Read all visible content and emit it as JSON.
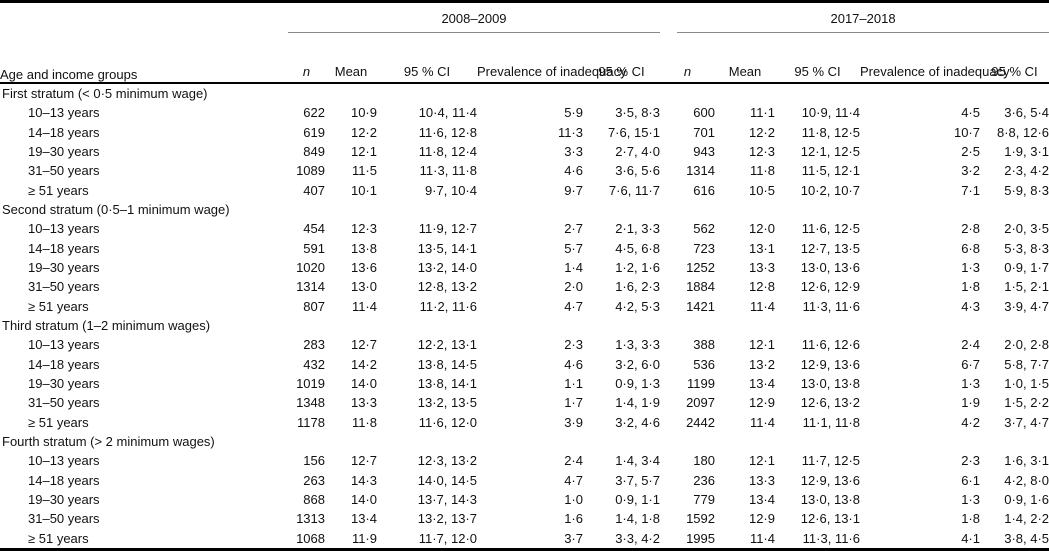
{
  "table": {
    "stub_header": "Age and income groups",
    "period_headers": [
      "2008–2009",
      "2017–2018"
    ],
    "column_headers": [
      "n",
      "Mean",
      "95 % CI",
      "Prevalence of inadequacy",
      "95 % CI",
      "n",
      "Mean",
      "95 % CI",
      "Prevalence of inadequacy",
      "95 % CI"
    ],
    "sections": [
      {
        "label": "First stratum (< 0·5 minimum wage)",
        "rows": [
          {
            "label": "10–13 years",
            "values": [
              "622",
              "10·9",
              "10·4, 11·4",
              "5·9",
              "3·5, 8·3",
              "600",
              "11·1",
              "10·9, 11·4",
              "4·5",
              "3·6, 5·4"
            ]
          },
          {
            "label": "14–18 years",
            "values": [
              "619",
              "12·2",
              "11·6, 12·8",
              "11·3",
              "7·6, 15·1",
              "701",
              "12·2",
              "11·8, 12·5",
              "10·7",
              "8·8, 12·6"
            ]
          },
          {
            "label": "19–30 years",
            "values": [
              "849",
              "12·1",
              "11·8, 12·4",
              "3·3",
              "2·7, 4·0",
              "943",
              "12·3",
              "12·1, 12·5",
              "2·5",
              "1·9, 3·1"
            ]
          },
          {
            "label": "31–50 years",
            "values": [
              "1089",
              "11·5",
              "11·3, 11·8",
              "4·6",
              "3·6, 5·6",
              "1314",
              "11·8",
              "11·5, 12·1",
              "3·2",
              "2·3, 4·2"
            ]
          },
          {
            "label": "≥ 51 years",
            "values": [
              "407",
              "10·1",
              "9·7, 10·4",
              "9·7",
              "7·6, 11·7",
              "616",
              "10·5",
              "10·2, 10·7",
              "7·1",
              "5·9, 8·3"
            ]
          }
        ]
      },
      {
        "label": "Second stratum (0·5–1 minimum wage)",
        "rows": [
          {
            "label": "10–13 years",
            "values": [
              "454",
              "12·3",
              "11·9, 12·7",
              "2·7",
              "2·1, 3·3",
              "562",
              "12·0",
              "11·6, 12·5",
              "2·8",
              "2·0, 3·5"
            ]
          },
          {
            "label": "14–18 years",
            "values": [
              "591",
              "13·8",
              "13·5, 14·1",
              "5·7",
              "4·5, 6·8",
              "723",
              "13·1",
              "12·7, 13·5",
              "6·8",
              "5·3, 8·3"
            ]
          },
          {
            "label": "19–30 years",
            "values": [
              "1020",
              "13·6",
              "13·2, 14·0",
              "1·4",
              "1·2, 1·6",
              "1252",
              "13·3",
              "13·0, 13·6",
              "1·3",
              "0·9, 1·7"
            ]
          },
          {
            "label": "31–50 years",
            "values": [
              "1314",
              "13·0",
              "12·8, 13·2",
              "2·0",
              "1·6, 2·3",
              "1884",
              "12·8",
              "12·6, 12·9",
              "1·8",
              "1·5, 2·1"
            ]
          },
          {
            "label": "≥ 51 years",
            "values": [
              "807",
              "11·4",
              "11·2, 11·6",
              "4·7",
              "4·2, 5·3",
              "1421",
              "11·4",
              "11·3, 11·6",
              "4·3",
              "3·9, 4·7"
            ]
          }
        ]
      },
      {
        "label": "Third stratum (1–2 minimum wages)",
        "rows": [
          {
            "label": "10–13 years",
            "values": [
              "283",
              "12·7",
              "12·2, 13·1",
              "2·3",
              "1·3, 3·3",
              "388",
              "12·1",
              "11·6, 12·6",
              "2·4",
              "2·0, 2·8"
            ]
          },
          {
            "label": "14–18 years",
            "values": [
              "432",
              "14·2",
              "13·8, 14·5",
              "4·6",
              "3·2, 6·0",
              "536",
              "13·2",
              "12·9, 13·6",
              "6·7",
              "5·8, 7·7"
            ]
          },
          {
            "label": "19–30 years",
            "values": [
              "1019",
              "14·0",
              "13·8, 14·1",
              "1·1",
              "0·9, 1·3",
              "1199",
              "13·4",
              "13·0, 13·8",
              "1·3",
              "1·0, 1·5"
            ]
          },
          {
            "label": "31–50 years",
            "values": [
              "1348",
              "13·3",
              "13·2, 13·5",
              "1·7",
              "1·4, 1·9",
              "2097",
              "12·9",
              "12·6, 13·2",
              "1·9",
              "1·5, 2·2"
            ]
          },
          {
            "label": "≥ 51 years",
            "values": [
              "1178",
              "11·8",
              "11·6, 12·0",
              "3·9",
              "3·2, 4·6",
              "2442",
              "11·4",
              "11·1, 11·8",
              "4·2",
              "3·7, 4·7"
            ]
          }
        ]
      },
      {
        "label": "Fourth stratum (> 2 minimum wages)",
        "rows": [
          {
            "label": "10–13 years",
            "values": [
              "156",
              "12·7",
              "12·3, 13·2",
              "2·4",
              "1·4, 3·4",
              "180",
              "12·1",
              "11·7, 12·5",
              "2·3",
              "1·6, 3·1"
            ]
          },
          {
            "label": "14–18 years",
            "values": [
              "263",
              "14·3",
              "14·0, 14·5",
              "4·7",
              "3·7, 5·7",
              "236",
              "13·3",
              "12·9, 13·6",
              "6·1",
              "4·2, 8·0"
            ]
          },
          {
            "label": "19–30 years",
            "values": [
              "868",
              "14·0",
              "13·7, 14·3",
              "1·0",
              "0·9, 1·1",
              "779",
              "13·4",
              "13·0, 13·8",
              "1·3",
              "0·9, 1·6"
            ]
          },
          {
            "label": "31–50 years",
            "values": [
              "1313",
              "13·4",
              "13·2, 13·7",
              "1·6",
              "1·4, 1·8",
              "1592",
              "12·9",
              "12·6, 13·1",
              "1·8",
              "1·4, 2·2"
            ]
          },
          {
            "label": "≥ 51 years",
            "values": [
              "1068",
              "11·9",
              "11·7, 12·0",
              "3·7",
              "3·3, 4·2",
              "1995",
              "11·4",
              "11·3, 11·6",
              "4·1",
              "3·8, 4·5"
            ]
          }
        ]
      }
    ]
  }
}
